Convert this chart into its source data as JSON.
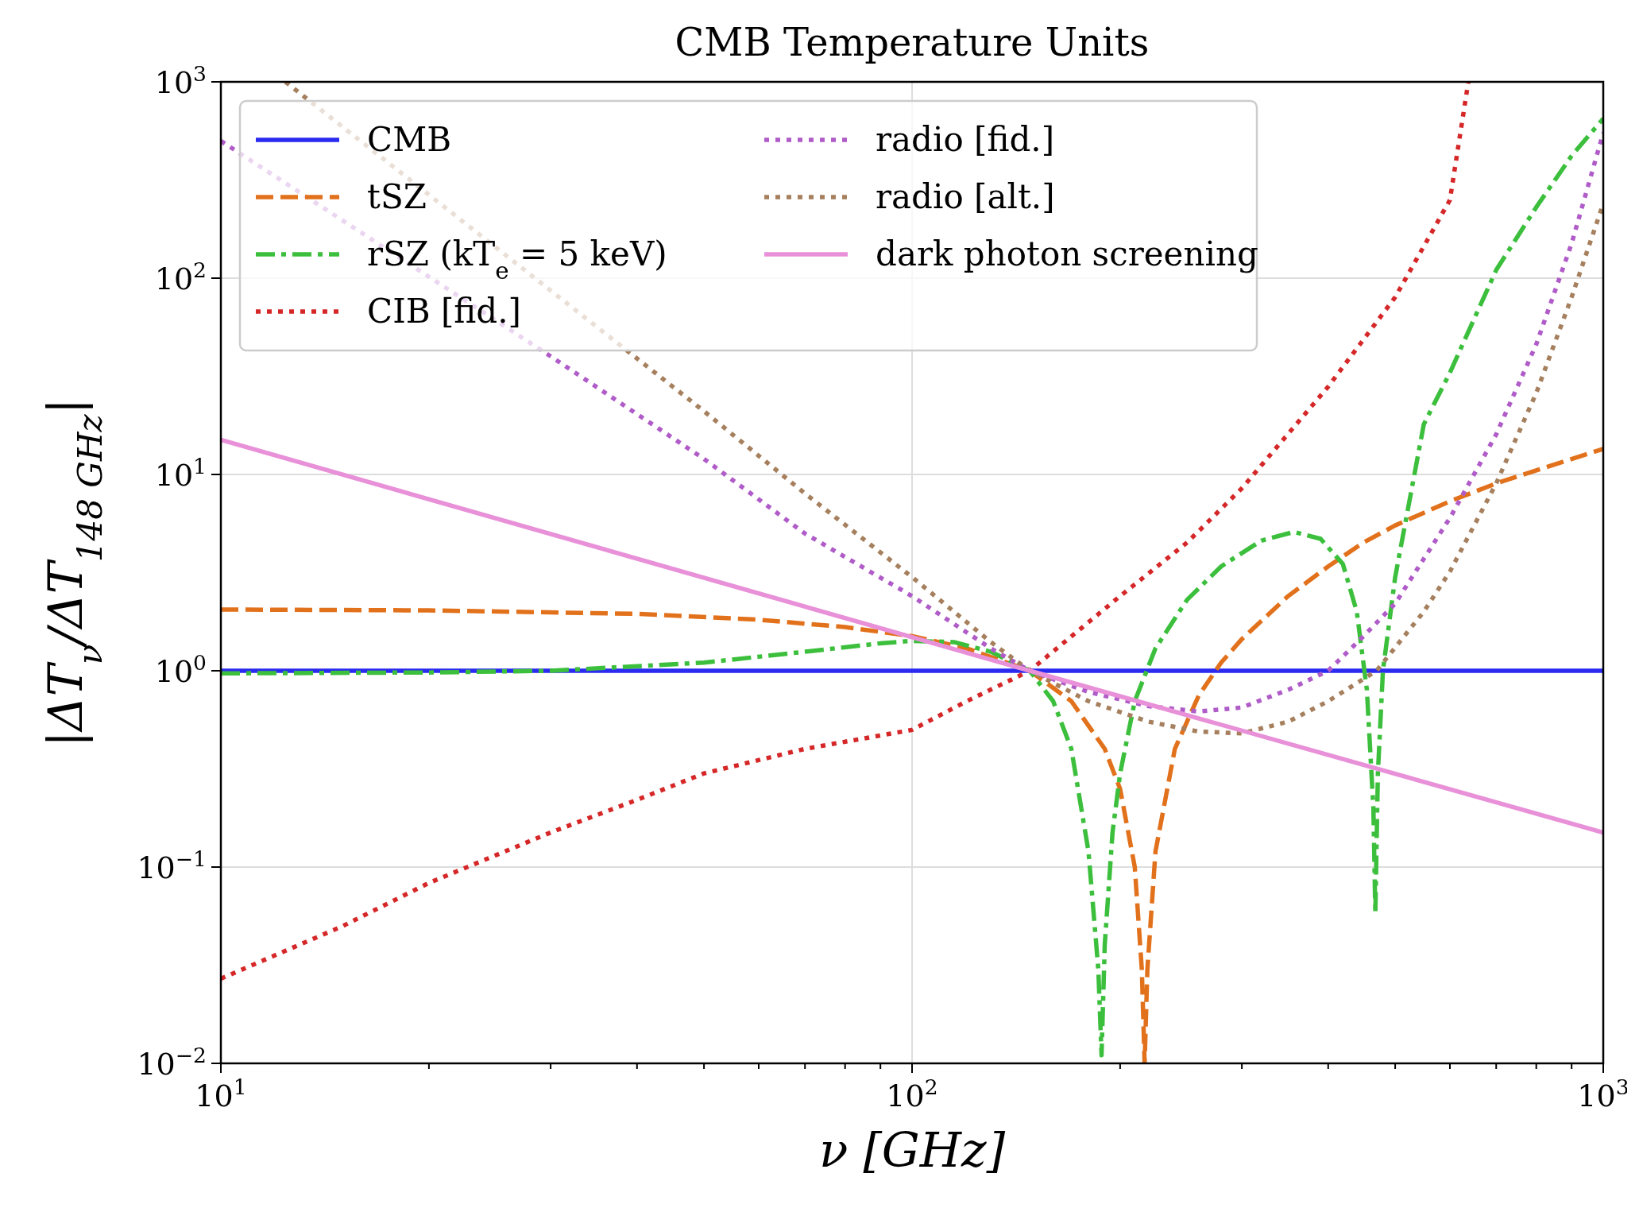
{
  "chart_data": {
    "type": "line",
    "title": "CMB Temperature Units",
    "xlabel": "ν [GHz]",
    "ylabel": "|ΔT$_{ν}$/ΔT$_{148 GHz}$|",
    "log": "xy",
    "grid": true,
    "legend": "top left",
    "xlim": [
      10,
      1000
    ],
    "ylim": [
      0.01,
      1000
    ],
    "xticks": [
      {
        "value": 10,
        "label": "10$^{1}$"
      },
      {
        "value": 20,
        "label": null
      },
      {
        "value": 30,
        "label": null
      },
      {
        "value": 40,
        "label": null
      },
      {
        "value": 50,
        "label": null
      },
      {
        "value": 60,
        "label": null
      },
      {
        "value": 70,
        "label": null
      },
      {
        "value": 80,
        "label": null
      },
      {
        "value": 90,
        "label": null
      },
      {
        "value": 100,
        "label": "10$^{2}$"
      },
      {
        "value": 200,
        "label": null
      },
      {
        "value": 300,
        "label": null
      },
      {
        "value": 400,
        "label": null
      },
      {
        "value": 500,
        "label": null
      },
      {
        "value": 600,
        "label": null
      },
      {
        "value": 700,
        "label": null
      },
      {
        "value": 800,
        "label": null
      },
      {
        "value": 900,
        "label": null
      },
      {
        "value": 1000,
        "label": "10$^{3}$"
      }
    ],
    "yticks": [
      {
        "value": 0.01,
        "label": "10$^{−2}$"
      },
      {
        "value": 0.1,
        "label": "10$^{−1}$"
      },
      {
        "value": 1,
        "label": "10$^{0}$"
      },
      {
        "value": 10,
        "label": "10$^{1}$"
      },
      {
        "value": 100,
        "label": "10$^{2}$"
      },
      {
        "value": 1000,
        "label": "10$^{3}$"
      }
    ],
    "series": [
      {
        "name": "CMB",
        "color": "#2a2af0",
        "line_style": "solid",
        "x": [
          10,
          1000
        ],
        "values": [
          1,
          1
        ]
      },
      {
        "name": "tSZ",
        "color": "#e2711c",
        "line_style": "dashed",
        "x": [
          10,
          20,
          40,
          60,
          80,
          100,
          120,
          148,
          170,
          190,
          200,
          210,
          215,
          217,
          219,
          225,
          240,
          260,
          280,
          300,
          350,
          400,
          450,
          500,
          600,
          700,
          800,
          1000
        ],
        "values": [
          2.05,
          2.03,
          1.95,
          1.82,
          1.67,
          1.5,
          1.3,
          1.0,
          0.7,
          0.4,
          0.25,
          0.1,
          0.03,
          0.01,
          0.03,
          0.12,
          0.4,
          0.75,
          1.1,
          1.45,
          2.4,
          3.4,
          4.5,
          5.5,
          7.3,
          9.0,
          10.5,
          13.5
        ]
      },
      {
        "name": "rSZ (kT$_{e}$ = 5 keV)",
        "color": "#3cbf3c",
        "line_style": "dashdot",
        "x": [
          10,
          20,
          30,
          50,
          70,
          90,
          100,
          115,
          130,
          148,
          160,
          170,
          180,
          186,
          188,
          190,
          195,
          200,
          210,
          225,
          250,
          280,
          320,
          357,
          390,
          420,
          440,
          455,
          465,
          468,
          472,
          480,
          500,
          550,
          600,
          700,
          800,
          900,
          1000
        ],
        "values": [
          0.97,
          0.98,
          1.0,
          1.1,
          1.25,
          1.38,
          1.42,
          1.4,
          1.25,
          1.0,
          0.7,
          0.4,
          0.12,
          0.03,
          0.011,
          0.04,
          0.15,
          0.3,
          0.7,
          1.3,
          2.3,
          3.4,
          4.6,
          5.1,
          4.7,
          3.5,
          2.0,
          0.8,
          0.2,
          0.058,
          0.3,
          1.0,
          3.0,
          18,
          33,
          110,
          230,
          420,
          650
        ]
      },
      {
        "name": "CIB [fid.]",
        "color": "#d62728",
        "line_style": "dotted",
        "x": [
          10,
          15,
          20,
          30,
          40,
          50,
          70,
          100,
          120,
          148,
          200,
          250,
          300,
          400,
          500,
          600,
          638
        ],
        "values": [
          0.027,
          0.05,
          0.083,
          0.15,
          0.22,
          0.3,
          0.4,
          0.5,
          0.7,
          1.0,
          2.4,
          4.5,
          8.5,
          28,
          80,
          250,
          1000
        ]
      },
      {
        "name": "radio [fid.]",
        "color": "#b05cc8",
        "line_style": "dotted",
        "x": [
          10,
          30,
          50,
          70,
          100,
          130,
          148,
          180,
          220,
          260,
          300,
          350,
          400,
          450,
          500,
          600,
          700,
          800,
          900,
          1000
        ],
        "values": [
          500,
          40,
          12,
          5,
          2.4,
          1.3,
          1.0,
          0.78,
          0.66,
          0.62,
          0.65,
          0.8,
          1.0,
          1.5,
          2.2,
          6,
          16,
          46,
          150,
          550
        ]
      },
      {
        "name": "radio [alt.]",
        "color": "#a6805e",
        "line_style": "dotted",
        "x": [
          12.4,
          50,
          70,
          100,
          130,
          148,
          180,
          220,
          260,
          300,
          350,
          400,
          470,
          550,
          600,
          700,
          800,
          900,
          1000
        ],
        "values": [
          1000,
          21,
          8,
          3.0,
          1.4,
          1.0,
          0.7,
          0.55,
          0.49,
          0.48,
          0.55,
          0.7,
          1.0,
          2.0,
          3.2,
          9,
          26,
          80,
          240
        ]
      },
      {
        "name": "dark photon screening",
        "color": "#e890d8",
        "line_style": "solid",
        "x": [
          10,
          148,
          1000
        ],
        "values": [
          15,
          1,
          0.15
        ]
      }
    ]
  }
}
